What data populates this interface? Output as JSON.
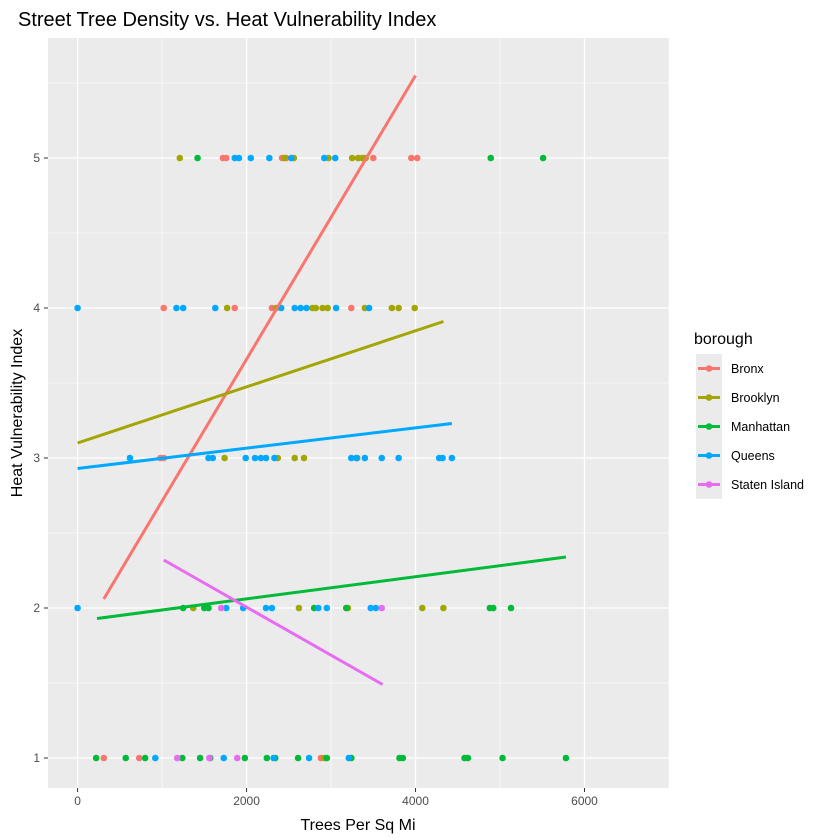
{
  "chart_data": {
    "type": "scatter",
    "title": "Street Tree Density vs. Heat Vulnerability Index",
    "xlabel": "Trees Per Sq Mi",
    "ylabel": "Heat Vulnerability Index",
    "xlim": [
      -350,
      7000
    ],
    "ylim": [
      0.8,
      5.8
    ],
    "x_ticks": [
      0,
      2000,
      4000,
      6000
    ],
    "x_tick_labels": [
      "0",
      "2000",
      "4000",
      "6000"
    ],
    "y_ticks": [
      1,
      2,
      3,
      4,
      5
    ],
    "y_tick_labels": [
      "1",
      "2",
      "3",
      "4",
      "5"
    ],
    "grid": true,
    "legend": {
      "title": "borough",
      "position": "right"
    },
    "series": [
      {
        "name": "Bronx",
        "color": "#F8766D",
        "points": [
          [
            1720,
            5
          ],
          [
            1760,
            5
          ],
          [
            2420,
            5
          ],
          [
            2470,
            5
          ],
          [
            3500,
            5
          ],
          [
            3950,
            5
          ],
          [
            4020,
            5
          ],
          [
            1020,
            4
          ],
          [
            1860,
            4
          ],
          [
            2300,
            4
          ],
          [
            3240,
            4
          ],
          [
            980,
            3
          ],
          [
            1020,
            3
          ],
          [
            310,
            1
          ],
          [
            730,
            1
          ],
          [
            2880,
            1
          ]
        ],
        "trend": [
          [
            310,
            2.06
          ],
          [
            4000,
            5.55
          ]
        ]
      },
      {
        "name": "Brooklyn",
        "color": "#A3A500",
        "points": [
          [
            1210,
            5
          ],
          [
            2450,
            5
          ],
          [
            2560,
            5
          ],
          [
            3250,
            5
          ],
          [
            3320,
            5
          ],
          [
            3370,
            5
          ],
          [
            3410,
            5
          ],
          [
            2970,
            5
          ],
          [
            1770,
            4
          ],
          [
            2350,
            4
          ],
          [
            2780,
            4
          ],
          [
            2820,
            4
          ],
          [
            2900,
            4
          ],
          [
            2960,
            4
          ],
          [
            3400,
            4
          ],
          [
            3720,
            4
          ],
          [
            3800,
            4
          ],
          [
            3990,
            4
          ],
          [
            1740,
            3
          ],
          [
            2370,
            3
          ],
          [
            2570,
            3
          ],
          [
            2680,
            3
          ],
          [
            3310,
            3
          ],
          [
            1370,
            2
          ],
          [
            2620,
            2
          ],
          [
            3200,
            2
          ],
          [
            4080,
            2
          ],
          [
            4330,
            2
          ],
          [
            2920,
            1
          ]
        ],
        "trend": [
          [
            0,
            3.1
          ],
          [
            4330,
            3.91
          ]
        ]
      },
      {
        "name": "Manhattan",
        "color": "#00BA38",
        "points": [
          [
            1420,
            5
          ],
          [
            4890,
            5
          ],
          [
            5510,
            5
          ],
          [
            1250,
            2
          ],
          [
            1500,
            2
          ],
          [
            1550,
            2
          ],
          [
            2800,
            2
          ],
          [
            3180,
            2
          ],
          [
            4880,
            2
          ],
          [
            4920,
            2
          ],
          [
            5130,
            2
          ],
          [
            220,
            1
          ],
          [
            570,
            1
          ],
          [
            800,
            1
          ],
          [
            1240,
            1
          ],
          [
            1450,
            1
          ],
          [
            1570,
            1
          ],
          [
            1980,
            1
          ],
          [
            2240,
            1
          ],
          [
            2340,
            1
          ],
          [
            2610,
            1
          ],
          [
            2950,
            1
          ],
          [
            3240,
            1
          ],
          [
            3810,
            1
          ],
          [
            3850,
            1
          ],
          [
            4580,
            1
          ],
          [
            4620,
            1
          ],
          [
            5030,
            1
          ],
          [
            5780,
            1
          ]
        ],
        "trend": [
          [
            230,
            1.93
          ],
          [
            5780,
            2.34
          ]
        ]
      },
      {
        "name": "Queens",
        "color": "#00A9FF",
        "points": [
          [
            1860,
            5
          ],
          [
            1910,
            5
          ],
          [
            2050,
            5
          ],
          [
            2270,
            5
          ],
          [
            2530,
            5
          ],
          [
            2920,
            5
          ],
          [
            3050,
            5
          ],
          [
            0,
            4
          ],
          [
            1170,
            4
          ],
          [
            1250,
            4
          ],
          [
            1630,
            4
          ],
          [
            2570,
            4
          ],
          [
            3450,
            4
          ],
          [
            2410,
            4
          ],
          [
            2640,
            4
          ],
          [
            2710,
            4
          ],
          [
            3060,
            4
          ],
          [
            620,
            3
          ],
          [
            1550,
            3
          ],
          [
            1600,
            3
          ],
          [
            1990,
            3
          ],
          [
            2100,
            3
          ],
          [
            2170,
            3
          ],
          [
            2230,
            3
          ],
          [
            2330,
            3
          ],
          [
            3240,
            3
          ],
          [
            3300,
            3
          ],
          [
            3400,
            3
          ],
          [
            3600,
            3
          ],
          [
            3800,
            3
          ],
          [
            4280,
            3
          ],
          [
            4320,
            3
          ],
          [
            4430,
            3
          ],
          [
            0,
            2
          ],
          [
            1760,
            2
          ],
          [
            1960,
            2
          ],
          [
            2230,
            2
          ],
          [
            2300,
            2
          ],
          [
            2850,
            2
          ],
          [
            2950,
            2
          ],
          [
            3470,
            2
          ],
          [
            3530,
            2
          ],
          [
            920,
            1
          ],
          [
            1730,
            1
          ],
          [
            2320,
            1
          ],
          [
            2740,
            1
          ],
          [
            3210,
            1
          ]
        ],
        "trend": [
          [
            0,
            2.93
          ],
          [
            4430,
            3.23
          ]
        ]
      },
      {
        "name": "Staten Island",
        "color": "#E76BF3",
        "points": [
          [
            1700,
            2
          ],
          [
            3600,
            2
          ],
          [
            1180,
            1
          ],
          [
            1560,
            1
          ],
          [
            1890,
            1
          ]
        ],
        "trend": [
          [
            1020,
            2.32
          ],
          [
            3610,
            1.49
          ]
        ]
      }
    ]
  }
}
